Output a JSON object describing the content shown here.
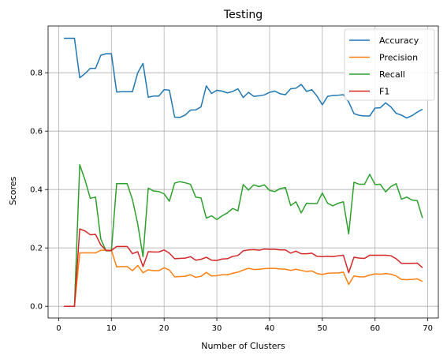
{
  "chart_data": {
    "type": "line",
    "title": "Testing",
    "xlabel": "Number of Clusters",
    "ylabel": "Scores",
    "xlim": [
      -2,
      72
    ],
    "ylim": [
      -0.04,
      0.96
    ],
    "xticks": [
      0,
      10,
      20,
      30,
      40,
      50,
      60,
      70
    ],
    "yticks": [
      0.0,
      0.2,
      0.4,
      0.6,
      0.8
    ],
    "ytick_labels": [
      "0.0",
      "0.2",
      "0.4",
      "0.6",
      "0.8"
    ],
    "grid": true,
    "legend_position": "top-right",
    "x": [
      1,
      2,
      3,
      4,
      5,
      6,
      7,
      8,
      9,
      10,
      11,
      12,
      13,
      14,
      15,
      16,
      17,
      18,
      19,
      20,
      21,
      22,
      23,
      24,
      25,
      26,
      27,
      28,
      29,
      30,
      31,
      32,
      33,
      34,
      35,
      36,
      37,
      38,
      39,
      40,
      41,
      42,
      43,
      44,
      45,
      46,
      47,
      48,
      49,
      50,
      51,
      52,
      53,
      54,
      55,
      56,
      57,
      58,
      59,
      60,
      61,
      62,
      63,
      64,
      65,
      66,
      67,
      68,
      69
    ],
    "series": [
      {
        "name": "Accuracy",
        "color": "#1f77b4",
        "values": [
          0.918,
          0.918,
          0.918,
          0.783,
          0.797,
          0.815,
          0.815,
          0.86,
          0.865,
          0.865,
          0.734,
          0.735,
          0.735,
          0.735,
          0.8,
          0.832,
          0.716,
          0.72,
          0.72,
          0.742,
          0.74,
          0.648,
          0.647,
          0.655,
          0.672,
          0.673,
          0.683,
          0.755,
          0.729,
          0.74,
          0.737,
          0.731,
          0.736,
          0.745,
          0.715,
          0.733,
          0.719,
          0.721,
          0.724,
          0.733,
          0.737,
          0.728,
          0.725,
          0.745,
          0.747,
          0.76,
          0.736,
          0.742,
          0.72,
          0.69,
          0.719,
          0.722,
          0.723,
          0.725,
          0.7,
          0.66,
          0.654,
          0.652,
          0.652,
          0.679,
          0.68,
          0.697,
          0.683,
          0.661,
          0.655,
          0.645,
          0.653,
          0.665,
          0.675
        ]
      },
      {
        "name": "Precision",
        "color": "#ff7f0e",
        "values": [
          0.0,
          0.0,
          0.0,
          0.183,
          0.183,
          0.183,
          0.183,
          0.192,
          0.192,
          0.192,
          0.135,
          0.136,
          0.136,
          0.122,
          0.14,
          0.115,
          0.125,
          0.122,
          0.122,
          0.132,
          0.124,
          0.101,
          0.102,
          0.103,
          0.108,
          0.099,
          0.103,
          0.116,
          0.104,
          0.105,
          0.108,
          0.108,
          0.113,
          0.117,
          0.124,
          0.13,
          0.126,
          0.127,
          0.129,
          0.13,
          0.13,
          0.128,
          0.127,
          0.123,
          0.127,
          0.123,
          0.119,
          0.121,
          0.112,
          0.109,
          0.113,
          0.114,
          0.114,
          0.117,
          0.075,
          0.104,
          0.101,
          0.101,
          0.107,
          0.111,
          0.11,
          0.112,
          0.11,
          0.104,
          0.092,
          0.091,
          0.092,
          0.094,
          0.085
        ]
      },
      {
        "name": "Recall",
        "color": "#2ca02c",
        "values": [
          0.0,
          0.0,
          0.0,
          0.485,
          0.433,
          0.37,
          0.374,
          0.23,
          0.19,
          0.19,
          0.42,
          0.42,
          0.42,
          0.365,
          0.282,
          0.17,
          0.405,
          0.395,
          0.393,
          0.385,
          0.36,
          0.422,
          0.427,
          0.423,
          0.418,
          0.374,
          0.371,
          0.302,
          0.31,
          0.297,
          0.31,
          0.32,
          0.335,
          0.327,
          0.417,
          0.398,
          0.416,
          0.41,
          0.416,
          0.397,
          0.393,
          0.403,
          0.407,
          0.345,
          0.358,
          0.32,
          0.353,
          0.352,
          0.352,
          0.388,
          0.353,
          0.344,
          0.353,
          0.358,
          0.248,
          0.425,
          0.418,
          0.418,
          0.452,
          0.417,
          0.418,
          0.392,
          0.41,
          0.42,
          0.367,
          0.374,
          0.364,
          0.362,
          0.302
        ]
      },
      {
        "name": "F1",
        "color": "#d62728",
        "values": [
          0.0,
          0.0,
          0.0,
          0.265,
          0.258,
          0.245,
          0.246,
          0.21,
          0.191,
          0.191,
          0.205,
          0.205,
          0.205,
          0.18,
          0.187,
          0.136,
          0.187,
          0.186,
          0.186,
          0.193,
          0.182,
          0.163,
          0.164,
          0.165,
          0.17,
          0.158,
          0.161,
          0.168,
          0.158,
          0.157,
          0.162,
          0.163,
          0.171,
          0.174,
          0.19,
          0.193,
          0.194,
          0.192,
          0.196,
          0.195,
          0.195,
          0.193,
          0.193,
          0.182,
          0.189,
          0.18,
          0.18,
          0.182,
          0.171,
          0.17,
          0.171,
          0.17,
          0.173,
          0.175,
          0.115,
          0.168,
          0.165,
          0.164,
          0.175,
          0.175,
          0.175,
          0.175,
          0.173,
          0.163,
          0.147,
          0.147,
          0.147,
          0.148,
          0.132
        ]
      }
    ]
  }
}
